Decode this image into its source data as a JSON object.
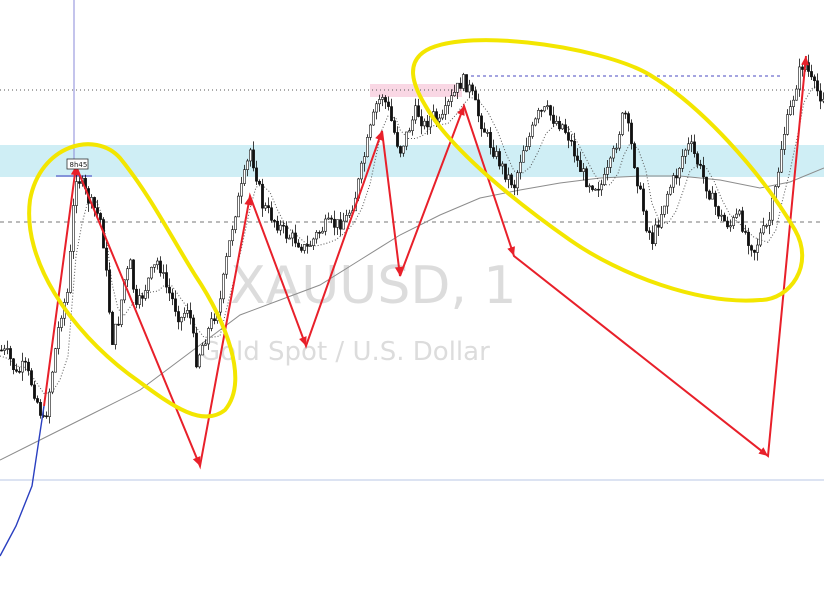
{
  "chart_data": {
    "type": "line",
    "symbol_watermark": "XAUUSD, 1",
    "description_watermark": "Gold Spot / U.S. Dollar",
    "time_label": "8h45",
    "colors": {
      "background": "#ffffff",
      "candle": "#111111",
      "zigzag": "#e8202a",
      "early_leg": "#2a3fc0",
      "ma_line": "#8c8c8c",
      "ma_fast": "#555555",
      "highlight_zone": "#bfe8f2",
      "pink_zone": "#f7c6d8",
      "annotation_ellipse": "#f3e600",
      "watermark": "#dcdcdc",
      "crosshair": "#8a8ad8",
      "bottom_line": "#b9c7e6"
    },
    "series": [
      {
        "values": [
          [
            0,
            350
          ],
          [
            8,
            355
          ],
          [
            16,
            375
          ],
          [
            24,
            365
          ],
          [
            32,
            385
          ],
          [
            44,
            425
          ],
          [
            52,
            370
          ],
          [
            60,
            315
          ],
          [
            68,
            290
          ],
          [
            72,
            220
          ],
          [
            76,
            175
          ],
          [
            82,
            185
          ],
          [
            88,
            200
          ],
          [
            95,
            210
          ],
          [
            100,
            220
          ],
          [
            104,
            250
          ],
          [
            108,
            300
          ],
          [
            112,
            340
          ],
          [
            118,
            320
          ],
          [
            124,
            280
          ],
          [
            130,
            265
          ],
          [
            136,
            310
          ],
          [
            142,
            295
          ],
          [
            150,
            275
          ],
          [
            158,
            260
          ],
          [
            165,
            285
          ],
          [
            172,
            300
          ],
          [
            180,
            320
          ],
          [
            188,
            305
          ],
          [
            196,
            360
          ],
          [
            204,
            340
          ],
          [
            212,
            320
          ],
          [
            220,
            300
          ],
          [
            226,
            260
          ],
          [
            234,
            215
          ],
          [
            242,
            185
          ],
          [
            250,
            150
          ],
          [
            256,
            175
          ],
          [
            262,
            205
          ],
          [
            270,
            215
          ],
          [
            278,
            225
          ],
          [
            286,
            235
          ],
          [
            296,
            240
          ],
          [
            306,
            250
          ],
          [
            316,
            235
          ],
          [
            326,
            225
          ],
          [
            336,
            225
          ],
          [
            346,
            218
          ],
          [
            354,
            200
          ],
          [
            362,
            165
          ],
          [
            370,
            130
          ],
          [
            376,
            105
          ],
          [
            382,
            95
          ],
          [
            388,
            110
          ],
          [
            396,
            140
          ],
          [
            400,
            150
          ],
          [
            408,
            130
          ],
          [
            416,
            110
          ],
          [
            424,
            125
          ],
          [
            432,
            115
          ],
          [
            440,
            125
          ],
          [
            448,
            105
          ],
          [
            456,
            90
          ],
          [
            462,
            80
          ],
          [
            470,
            90
          ],
          [
            478,
            115
          ],
          [
            488,
            140
          ],
          [
            498,
            160
          ],
          [
            506,
            175
          ],
          [
            514,
            185
          ],
          [
            522,
            150
          ],
          [
            530,
            135
          ],
          [
            538,
            115
          ],
          [
            546,
            110
          ],
          [
            554,
            120
          ],
          [
            562,
            125
          ],
          [
            570,
            140
          ],
          [
            578,
            165
          ],
          [
            586,
            180
          ],
          [
            594,
            185
          ],
          [
            602,
            185
          ],
          [
            610,
            165
          ],
          [
            618,
            135
          ],
          [
            624,
            110
          ],
          [
            630,
            140
          ],
          [
            638,
            185
          ],
          [
            646,
            225
          ],
          [
            652,
            240
          ],
          [
            660,
            215
          ],
          [
            668,
            190
          ],
          [
            676,
            175
          ],
          [
            684,
            150
          ],
          [
            690,
            145
          ],
          [
            698,
            165
          ],
          [
            706,
            185
          ],
          [
            714,
            205
          ],
          [
            722,
            220
          ],
          [
            730,
            225
          ],
          [
            738,
            215
          ],
          [
            746,
            235
          ],
          [
            754,
            250
          ],
          [
            760,
            235
          ],
          [
            768,
            225
          ],
          [
            776,
            185
          ],
          [
            782,
            140
          ],
          [
            790,
            110
          ],
          [
            798,
            75
          ],
          [
            804,
            60
          ],
          [
            812,
            85
          ],
          [
            820,
            95
          ]
        ]
      },
      {
        "values": [
          [
            0,
            460
          ],
          [
            40,
            440
          ],
          [
            90,
            415
          ],
          [
            140,
            390
          ],
          [
            200,
            345
          ],
          [
            240,
            315
          ],
          [
            280,
            300
          ],
          [
            320,
            285
          ],
          [
            360,
            260
          ],
          [
            400,
            235
          ],
          [
            440,
            215
          ],
          [
            480,
            198
          ],
          [
            520,
            190
          ],
          [
            560,
            183
          ],
          [
            600,
            178
          ],
          [
            640,
            176
          ],
          [
            680,
            176
          ],
          [
            720,
            180
          ],
          [
            760,
            188
          ],
          [
            790,
            182
          ],
          [
            824,
            168
          ]
        ]
      },
      {
        "values": [
          [
            0,
            40
          ],
          [
            8,
            55
          ],
          [
            16,
            70
          ],
          [
            24,
            90
          ],
          [
            32,
            110
          ],
          [
            44,
            190
          ]
        ]
      },
      {
        "values": [
          [
            44,
            190
          ],
          [
            76,
            430
          ],
          [
            200,
            130
          ],
          [
            250,
            400
          ],
          [
            306,
            250
          ],
          [
            382,
            465
          ],
          [
            400,
            320
          ],
          [
            464,
            490
          ],
          [
            514,
            340
          ],
          [
            768,
            140
          ],
          [
            806,
            540
          ]
        ]
      }
    ]
  }
}
